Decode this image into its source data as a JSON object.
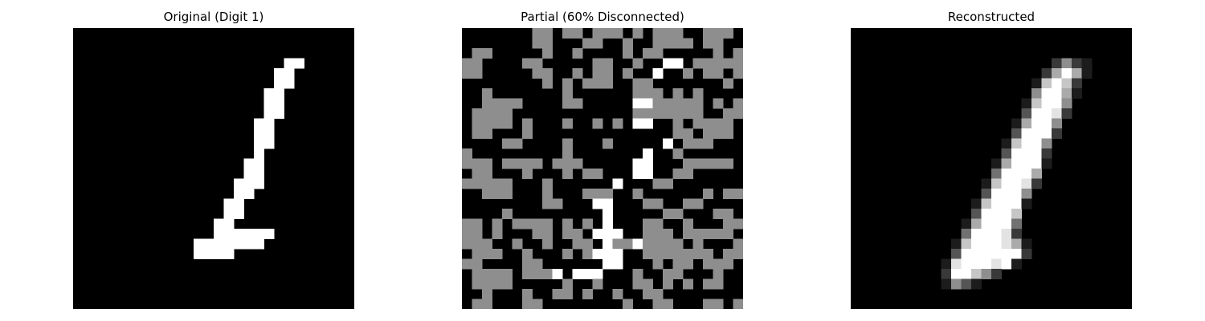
{
  "chart_data": [
    {
      "type": "heatmap",
      "title": "Original (Digit 1)",
      "grid_size": [
        28,
        28
      ],
      "colormap": "gray",
      "vmin": 0,
      "vmax": 1,
      "axes_visible": false,
      "data": [
        "0000000000000000000000000000",
        "0000000000000000000000000000",
        "0000000000000000000000000000",
        "0000000000000000000009900000",
        "0000000000000000000099000000",
        "0000000000000000000099000000",
        "0000000000000000000990000000",
        "0000000000000000000990000000",
        "0000000000000000000990000000",
        "0000000000000000009900000000",
        "0000000000000000009900000000",
        "0000000000000000009900000000",
        "0000000000000000009000000000",
        "0000000000000000099000000000",
        "0000000000000000099000000000",
        "0000000000000000999000000000",
        "0000000000000000990000000000",
        "0000000000000009900000000000",
        "0000000000000009900000000000",
        "0000000000000099000000000000",
        "0000000000000099999900000000",
        "0000000000009999999000000000",
        "0000000000009999000000000000",
        "0000000000000000000000000000",
        "0000000000000000000000000000",
        "0000000000000000000000000000",
        "0000000000000000000000000000",
        "0000000000000000000000000000"
      ]
    },
    {
      "type": "heatmap",
      "title": "Partial (60% Disconnected)",
      "grid_size": [
        28,
        28
      ],
      "colormap": "gray",
      "vmin": 0,
      "vmax": 1,
      "axes_visible": false,
      "data": [
        "0000000550550555050555005550",
        "0000000550005500500555505500",
        "0550000050050000505500000505",
        "5500005500000550050099055555",
        "5500000550050550500900505505",
        "0000000050505550055000000050",
        "0050000000500000055505050000",
        "0055550000550000099555550505",
        "0555500000000000055555550055",
        "0555505000500505099005055550",
        "0550005000000000000005505550",
        "0000550000500050000090555000",
        "5000000000500000009005000000",
        "5550555505550000099000555550",
        "0550005000505500099005500000",
        "5555500050000009000550000000",
        "0055500050005550050000005055",
        "0000000055000990005500550000",
        "0000500000000090000055000550",
        "5505055550505090005500500055",
        "5505000550550999005550555550",
        "5550050050055095595555050005",
        "0555005000505999005555555055",
        "5500005500000099000505505550",
        "0555505559099900050055000500",
        "0555500000500500055050505500",
        "0050005005505005005500000000",
        "0550005500000000500550005505"
      ]
    },
    {
      "type": "heatmap",
      "title": "Reconstructed",
      "grid_size": [
        28,
        28
      ],
      "colormap": "gray",
      "vmin": 0,
      "vmax": 1,
      "axes_visible": false,
      "data": [
        "0000000000000000000000000000",
        "0000000000000000000000000000",
        "0000000000000000000000000000",
        "0000000000000000000025210000",
        "0000000000000000000269610000",
        "0000000000000000001797200000",
        "0000000000000000005996100000",
        "0000000000000000017995000000",
        "0000000000000000039982000000",
        "0000000000000000169950000000",
        "0000000000000000399920000000",
        "0000000000000001799500000000",
        "0000000000000003999200000000",
        "0000000000000016999100000000",
        "0000000000000049996000000000",
        "0000000000000179982000000000",
        "0000000000000399950000000000",
        "0000000000001799910000000000",
        "0000000000003999700000000000",
        "0000000000016999400000000000",
        "0000000000049998200000000000",
        "0000000000179998610000000000",
        "0000000000399999920000000000",
        "0000000001899989100000000000",
        "0000000002997520000000000000",
        "0000000001531000000000000000",
        "0000000000000000000000000000",
        "0000000000000000000000000000"
      ]
    }
  ]
}
